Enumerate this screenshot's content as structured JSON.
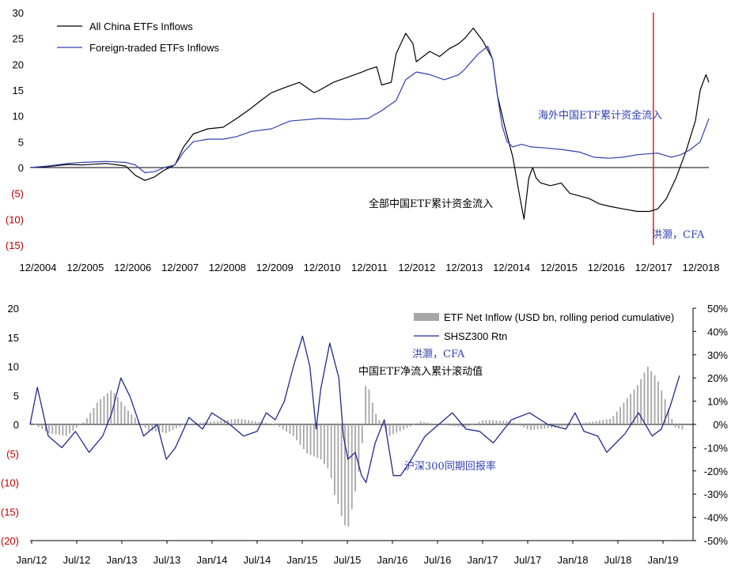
{
  "chart_data": [
    {
      "type": "line",
      "title": "",
      "xlabel": "",
      "ylabel": "",
      "x_ticks": [
        "12/2004",
        "12/2005",
        "12/2006",
        "12/2007",
        "12/2008",
        "12/2009",
        "12/2010",
        "12/2011",
        "12/2012",
        "12/2013",
        "12/2014",
        "12/2015",
        "12/2016",
        "12/2017",
        "12/2018"
      ],
      "y_ticks": [
        "30",
        "25",
        "20",
        "15",
        "10",
        "5",
        "0",
        "(5)",
        "(10)",
        "(15)"
      ],
      "ylim": [
        -15,
        30
      ],
      "xlim": [
        2004.92,
        2018.98
      ],
      "legend_position": "top-left",
      "colors": {
        "all": "#000000",
        "foreign": "#2f3fb0",
        "marker": "#e02020"
      },
      "vertical_marker_x": 2017.83,
      "series": [
        {
          "name": "All China ETFs Inflows",
          "x": [
            2004.92,
            2005.3,
            2005.7,
            2006.0,
            2006.5,
            2006.9,
            2007.1,
            2007.3,
            2007.5,
            2007.7,
            2007.92,
            2008.1,
            2008.3,
            2008.6,
            2008.92,
            2009.2,
            2009.5,
            2009.7,
            2009.92,
            2010.2,
            2010.5,
            2010.8,
            2010.92,
            2011.2,
            2011.5,
            2011.8,
            2011.92,
            2012.1,
            2012.2,
            2012.4,
            2012.5,
            2012.7,
            2012.85,
            2012.92,
            2013.2,
            2013.4,
            2013.6,
            2013.8,
            2013.92,
            2014.1,
            2014.3,
            2014.5,
            2014.6,
            2014.75,
            2014.92,
            2015.05,
            2015.15,
            2015.25,
            2015.33,
            2015.4,
            2015.5,
            2015.7,
            2015.92,
            2016.1,
            2016.3,
            2016.5,
            2016.7,
            2016.92,
            2017.2,
            2017.5,
            2017.75,
            2017.92,
            2018.1,
            2018.3,
            2018.5,
            2018.7,
            2018.8,
            2018.92,
            2018.98
          ],
          "y": [
            0,
            0.2,
            0.6,
            0.5,
            0.8,
            0.3,
            -1.5,
            -2.5,
            -1.8,
            -0.5,
            0.5,
            4,
            6.5,
            7.5,
            7.8,
            9.5,
            11.5,
            13,
            14.5,
            15.5,
            16.5,
            14.5,
            15,
            16.5,
            17.5,
            18.5,
            19,
            19.5,
            16,
            16.5,
            22,
            26,
            24,
            20.5,
            22.5,
            21.5,
            23,
            24,
            25,
            27,
            24.5,
            21,
            14,
            8,
            2,
            -5,
            -10,
            -2,
            0,
            -2,
            -3,
            -3.5,
            -3,
            -5,
            -5.5,
            -6,
            -7,
            -7.5,
            -8,
            -8.5,
            -8.5,
            -8,
            -6,
            -2,
            3,
            9,
            15,
            18,
            16.5
          ]
        },
        {
          "name": "Foreign-traded ETFs Inflows",
          "x": [
            2004.92,
            2005.3,
            2005.7,
            2006.0,
            2006.5,
            2006.9,
            2007.1,
            2007.3,
            2007.5,
            2007.7,
            2007.92,
            2008.1,
            2008.3,
            2008.6,
            2008.92,
            2009.2,
            2009.5,
            2009.92,
            2010.3,
            2010.92,
            2011.5,
            2011.92,
            2012.2,
            2012.5,
            2012.7,
            2012.92,
            2013.2,
            2013.5,
            2013.8,
            2013.92,
            2014.2,
            2014.4,
            2014.5,
            2014.6,
            2014.7,
            2014.8,
            2014.92,
            2015.1,
            2015.3,
            2015.6,
            2015.92,
            2016.3,
            2016.6,
            2016.92,
            2017.2,
            2017.5,
            2017.92,
            2018.2,
            2018.4,
            2018.6,
            2018.8,
            2018.98
          ],
          "y": [
            0,
            0.3,
            0.8,
            1.0,
            1.2,
            1.0,
            0.5,
            -1.0,
            -0.8,
            0,
            0.5,
            3,
            5,
            5.5,
            5.5,
            6,
            7,
            7.5,
            9,
            9.5,
            9.3,
            9.5,
            11,
            13,
            17,
            18.5,
            18,
            17,
            18,
            19,
            22,
            23.5,
            21,
            14,
            8,
            5,
            4,
            4.5,
            4,
            3.8,
            3.5,
            3,
            2,
            1.8,
            2,
            2.5,
            2.8,
            2,
            2.5,
            3.5,
            5,
            9.5
          ]
        }
      ],
      "annotations": [
        {
          "text": "海外中国ETF累计资金流入",
          "color": "#2f3fb0"
        },
        {
          "text": "全部中国ETF累计资金流入",
          "color": "#000000"
        },
        {
          "text": "洪灏，CFA",
          "color": "#2f3fb0"
        }
      ]
    },
    {
      "type": "bar+line",
      "title": "",
      "xlabel": "",
      "ylabel": "",
      "x_ticks": [
        "Jan/12",
        "Jul/12",
        "Jan/13",
        "Jul/13",
        "Jan/14",
        "Jul/14",
        "Jan/15",
        "Jul/15",
        "Jan/16",
        "Jul/16",
        "Jan/17",
        "Jul/17",
        "Jan/18",
        "Jul/18",
        "Jan/19"
      ],
      "y_left_ticks": [
        "20",
        "15",
        "10",
        "5",
        "0",
        "(5)",
        "(10)",
        "(15)",
        "(20)"
      ],
      "y_right_ticks": [
        "50%",
        "40%",
        "30%",
        "20%",
        "10%",
        "0%",
        "-10%",
        "-20%",
        "-30%",
        "-40%",
        "-50%"
      ],
      "ylim_left": [
        -20,
        20
      ],
      "ylim_right": [
        -50,
        50
      ],
      "xlim": [
        2012.0,
        2019.3
      ],
      "legend_position": "top-right",
      "colors": {
        "bars": "#a6a6a6",
        "line": "#1e2a8c"
      },
      "series": [
        {
          "name": "ETF Net Inflow (USD bn, rolling period cumulative)",
          "axis": "left",
          "x": [
            2012.0,
            2012.2,
            2012.4,
            2012.6,
            2012.75,
            2012.9,
            2013.0,
            2013.1,
            2013.3,
            2013.5,
            2013.7,
            2014.0,
            2014.3,
            2014.5,
            2014.7,
            2014.9,
            2015.05,
            2015.2,
            2015.3,
            2015.35,
            2015.4,
            2015.45,
            2015.5,
            2015.55,
            2015.6,
            2015.65,
            2015.7,
            2015.8,
            2015.95,
            2016.1,
            2016.3,
            2016.5,
            2016.8,
            2017.0,
            2017.3,
            2017.5,
            2017.8,
            2018.0,
            2018.2,
            2018.4,
            2018.5,
            2018.6,
            2018.7,
            2018.8,
            2018.9,
            2019.0,
            2019.1,
            2019.2
          ],
          "y": [
            0.5,
            -1.5,
            -2,
            0.5,
            4,
            6,
            4,
            2,
            -1,
            -1.5,
            0,
            0.5,
            1,
            0.5,
            0,
            -2,
            -5,
            -6,
            -8,
            -12,
            -14,
            -17,
            -18,
            -14,
            -10,
            -5,
            8,
            2,
            -2,
            -1,
            0.5,
            0,
            -0.5,
            0.8,
            0.5,
            -1,
            -0.5,
            0,
            0.5,
            1,
            3,
            5,
            7,
            10,
            8,
            4,
            -0.5,
            -1
          ]
        },
        {
          "name": "SHSZ300 Rtn",
          "axis": "right",
          "x": [
            2012.0,
            2012.08,
            2012.2,
            2012.35,
            2012.5,
            2012.65,
            2012.8,
            2012.9,
            2013.0,
            2013.1,
            2013.25,
            2013.4,
            2013.5,
            2013.6,
            2013.75,
            2013.9,
            2014.0,
            2014.2,
            2014.35,
            2014.5,
            2014.6,
            2014.7,
            2014.8,
            2014.9,
            2015.0,
            2015.08,
            2015.15,
            2015.2,
            2015.3,
            2015.4,
            2015.45,
            2015.5,
            2015.58,
            2015.65,
            2015.7,
            2015.8,
            2015.9,
            2016.0,
            2016.08,
            2016.2,
            2016.35,
            2016.5,
            2016.65,
            2016.8,
            2016.95,
            2017.1,
            2017.3,
            2017.5,
            2017.7,
            2017.9,
            2018.0,
            2018.1,
            2018.25,
            2018.35,
            2018.45,
            2018.55,
            2018.7,
            2018.85,
            2018.95,
            2019.05,
            2019.15
          ],
          "y": [
            0,
            16,
            -5,
            -10,
            -3,
            -12,
            -5,
            5,
            20,
            12,
            -5,
            0,
            -15,
            -10,
            3,
            -2,
            5,
            0,
            -5,
            -3,
            5,
            2,
            10,
            25,
            38,
            25,
            -2,
            15,
            35,
            20,
            -5,
            -15,
            -12,
            -22,
            -25,
            -8,
            2,
            -22,
            -22,
            -15,
            -5,
            0,
            5,
            -2,
            -3,
            -8,
            2,
            5,
            0,
            -2,
            5,
            -3,
            -5,
            -12,
            -8,
            -4,
            5,
            -5,
            -2,
            8,
            21
          ]
        }
      ],
      "annotations": [
        {
          "text": "洪灏，CFA",
          "color": "#2f3fb0"
        },
        {
          "text": "中国ETF净流入累计滚动值",
          "color": "#000000"
        },
        {
          "text": "沪深300同期回报率",
          "color": "#2f3fb0"
        }
      ]
    }
  ]
}
